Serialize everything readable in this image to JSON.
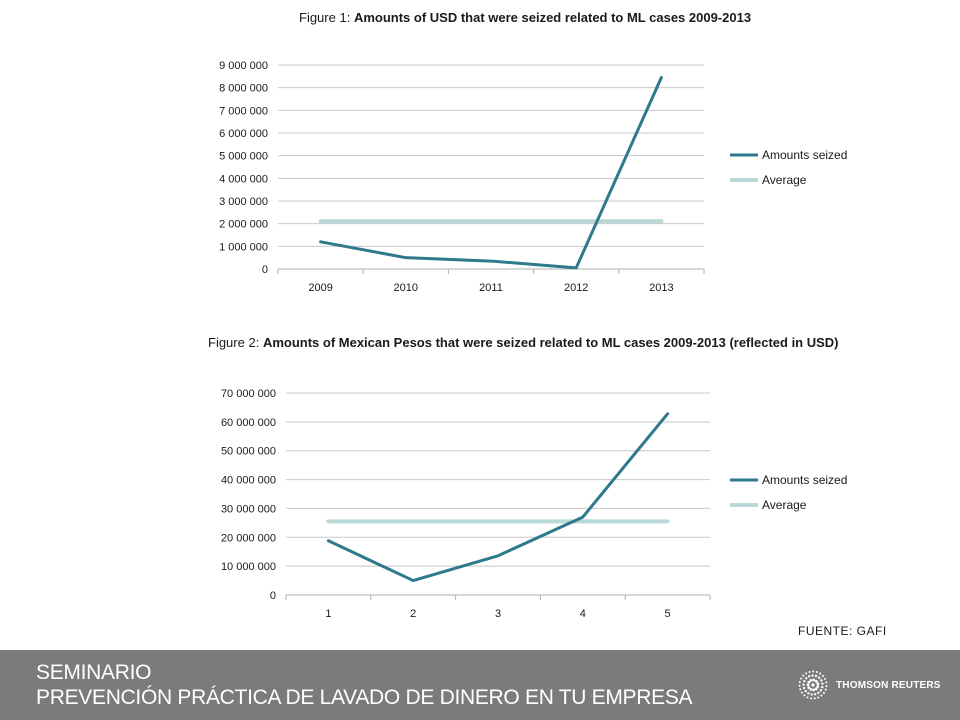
{
  "figure1": {
    "label": "Figure 1:",
    "title_bold": "Amounts of USD that were seized related to ML cases 2009-2013"
  },
  "figure2": {
    "label": "Figure 2:",
    "title_bold": "Amounts of Mexican Pesos that were seized related to ML cases 2009-2013 (reflected in USD)"
  },
  "chart_data": [
    {
      "type": "line",
      "title": "Figure 1: Amounts of USD that were seized related to ML cases 2009-2013",
      "categories": [
        "2009",
        "2010",
        "2011",
        "2012",
        "2013"
      ],
      "ylim": [
        0,
        9000000
      ],
      "yticks": [
        0,
        1000000,
        2000000,
        3000000,
        4000000,
        5000000,
        6000000,
        7000000,
        8000000,
        9000000
      ],
      "ytick_labels": [
        "0",
        "1 000 000",
        "2 000 000",
        "3 000 000",
        "4 000 000",
        "5 000 000",
        "6 000 000",
        "7 000 000",
        "8 000 000",
        "9 000 000"
      ],
      "grid": true,
      "legend_position": "right",
      "series": [
        {
          "name": "Amounts seized",
          "values": [
            1200000,
            500000,
            350000,
            50000,
            8450000
          ],
          "color": "#2e7a8c"
        },
        {
          "name": "Average",
          "values": [
            2110000,
            2110000,
            2110000,
            2110000,
            2110000
          ],
          "color": "#b9d8d8"
        }
      ]
    },
    {
      "type": "line",
      "title": "Figure 2: Amounts of Mexican Pesos that were seized related to ML cases 2009-2013 (reflected in USD)",
      "categories": [
        "1",
        "2",
        "3",
        "4",
        "5"
      ],
      "ylim": [
        0,
        70000000
      ],
      "yticks": [
        0,
        10000000,
        20000000,
        30000000,
        40000000,
        50000000,
        60000000,
        70000000
      ],
      "ytick_labels": [
        "0",
        "10 000 000",
        "20 000 000",
        "30 000 000",
        "40 000 000",
        "50 000 000",
        "60 000 000",
        "70 000 000"
      ],
      "grid": true,
      "legend_position": "right",
      "series": [
        {
          "name": "Amounts seized",
          "values": [
            18800000,
            5000000,
            13600000,
            27000000,
            62800000
          ],
          "color": "#2e7a8c"
        },
        {
          "name": "Average",
          "values": [
            25500000,
            25500000,
            25500000,
            25500000,
            25500000
          ],
          "color": "#b9d8d8"
        }
      ]
    }
  ],
  "source": "FUENTE: GAFI",
  "footer": {
    "line1": "SEMINARIO",
    "line2": "PREVENCIÓN PRÁCTICA DE LAVADO DE DINERO EN TU EMPRESA",
    "brand": "THOMSON REUTERS",
    "bg_color": "#7b7b7b"
  }
}
